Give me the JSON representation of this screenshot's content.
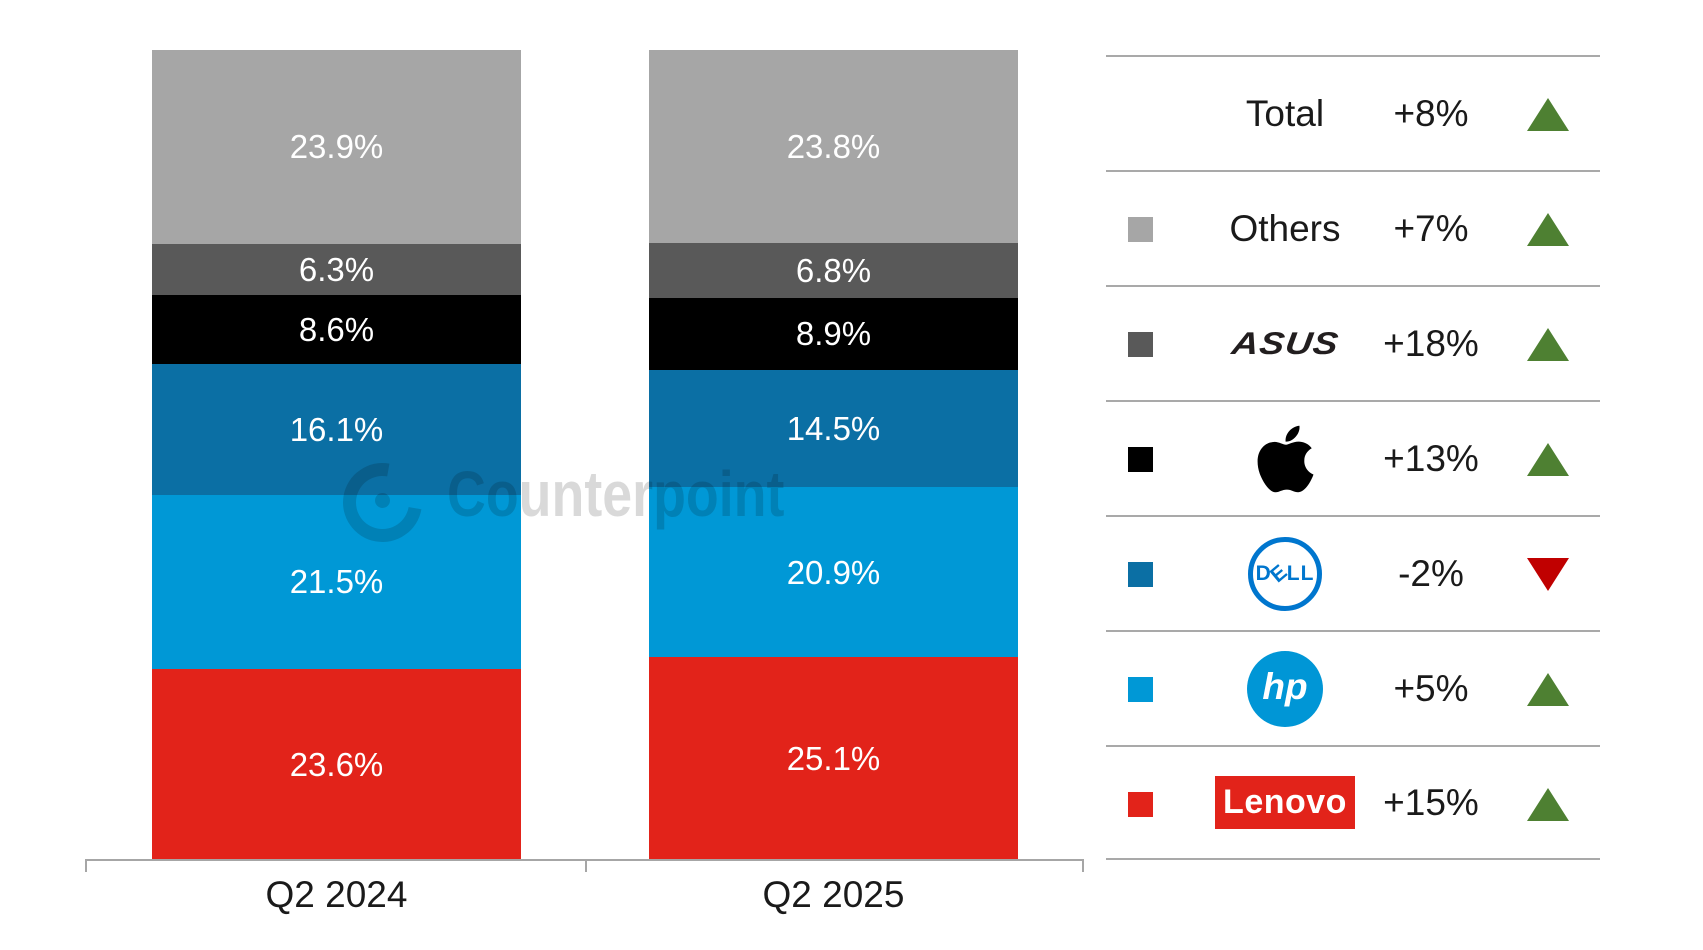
{
  "watermark": {
    "text": "Counterpoint"
  },
  "chart_data": {
    "type": "bar",
    "subtype": "stacked-100-percent",
    "title": "",
    "categories": [
      "Q2 2024",
      "Q2 2025"
    ],
    "unit": "%",
    "series_order": "top-to-bottom",
    "series": [
      {
        "name": "Others",
        "color": "#a6a6a6",
        "values": [
          23.9,
          23.8
        ]
      },
      {
        "name": "ASUS",
        "color": "#595959",
        "values": [
          6.3,
          6.8
        ]
      },
      {
        "name": "Apple",
        "color": "#000000",
        "values": [
          8.6,
          8.9
        ]
      },
      {
        "name": "Dell",
        "color": "#0b6fa4",
        "values": [
          16.1,
          14.5
        ]
      },
      {
        "name": "HP",
        "color": "#0098d6",
        "values": [
          21.5,
          20.9
        ]
      },
      {
        "name": "Lenovo",
        "color": "#e2231a",
        "values": [
          23.6,
          25.1
        ]
      }
    ],
    "ylim": [
      0,
      100
    ],
    "grid": false,
    "legend_position": "right"
  },
  "legend": {
    "rows": [
      {
        "brand": "Total",
        "logo": "text",
        "change": "+8%",
        "direction": "up",
        "arrow_color": "#4e8032",
        "swatch_color": ""
      },
      {
        "brand": "Others",
        "logo": "text",
        "change": "+7%",
        "direction": "up",
        "arrow_color": "#4e8032",
        "swatch_color": "#a6a6a6"
      },
      {
        "brand": "ASUS",
        "logo": "asus",
        "logo_text": "ASUS",
        "logo_color": "#221e1f",
        "change": "+18%",
        "direction": "up",
        "arrow_color": "#4e8032",
        "swatch_color": "#595959"
      },
      {
        "brand": "Apple",
        "logo": "apple",
        "logo_color": "#000000",
        "change": "+13%",
        "direction": "up",
        "arrow_color": "#4e8032",
        "swatch_color": "#000000"
      },
      {
        "brand": "Dell",
        "logo": "dell",
        "logo_parts": [
          "D",
          "E",
          "LL"
        ],
        "logo_color": "#0076ce",
        "change": "-2%",
        "direction": "down",
        "arrow_color": "#c00000",
        "swatch_color": "#0b6fa4"
      },
      {
        "brand": "HP",
        "logo": "hp",
        "logo_text": "hp",
        "logo_color": "#0096d6",
        "change": "+5%",
        "direction": "up",
        "arrow_color": "#4e8032",
        "swatch_color": "#0098d6"
      },
      {
        "brand": "Lenovo",
        "logo": "lenovo",
        "logo_text": "Lenovo",
        "logo_color": "#e2231a",
        "change": "+15%",
        "direction": "up",
        "arrow_color": "#4e8032",
        "swatch_color": "#e2231a"
      }
    ]
  }
}
